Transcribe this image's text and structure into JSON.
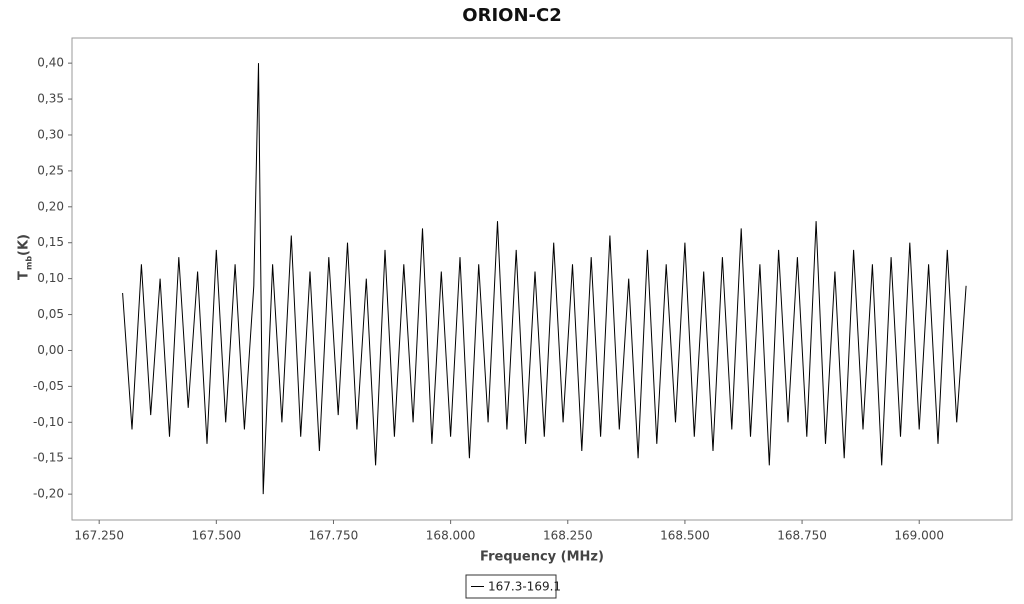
{
  "chart_data": {
    "type": "line",
    "title": "ORION-C2",
    "x_label": "Frequency (MHz)",
    "y_label": {
      "main": "T",
      "subscript": "mb",
      "unit": "(K)"
    },
    "x": [
      167.3,
      167.32,
      167.34,
      167.36,
      167.38,
      167.4,
      167.42,
      167.44,
      167.46,
      167.48,
      167.5,
      167.52,
      167.54,
      167.56,
      167.58,
      167.59,
      167.6,
      167.62,
      167.64,
      167.66,
      167.68,
      167.7,
      167.72,
      167.74,
      167.76,
      167.78,
      167.8,
      167.82,
      167.84,
      167.86,
      167.88,
      167.9,
      167.92,
      167.94,
      167.96,
      167.98,
      168.0,
      168.02,
      168.04,
      168.06,
      168.08,
      168.1,
      168.12,
      168.14,
      168.16,
      168.18,
      168.2,
      168.22,
      168.24,
      168.26,
      168.28,
      168.3,
      168.32,
      168.34,
      168.36,
      168.38,
      168.4,
      168.42,
      168.44,
      168.46,
      168.48,
      168.5,
      168.52,
      168.54,
      168.56,
      168.58,
      168.6,
      168.62,
      168.64,
      168.66,
      168.68,
      168.7,
      168.72,
      168.74,
      168.76,
      168.78,
      168.8,
      168.82,
      168.84,
      168.86,
      168.88,
      168.9,
      168.92,
      168.94,
      168.96,
      168.98,
      169.0,
      169.02,
      169.04,
      169.06,
      169.08,
      169.1
    ],
    "series": [
      {
        "name": "167.3-169.1",
        "color": "#000000",
        "values": [
          0.08,
          -0.11,
          0.12,
          -0.09,
          0.1,
          -0.12,
          0.13,
          -0.08,
          0.11,
          -0.13,
          0.14,
          -0.1,
          0.12,
          -0.11,
          0.09,
          0.4,
          -0.2,
          0.12,
          -0.1,
          0.16,
          -0.12,
          0.11,
          -0.14,
          0.13,
          -0.09,
          0.15,
          -0.11,
          0.1,
          -0.16,
          0.14,
          -0.12,
          0.12,
          -0.1,
          0.17,
          -0.13,
          0.11,
          -0.12,
          0.13,
          -0.15,
          0.12,
          -0.1,
          0.18,
          -0.11,
          0.14,
          -0.13,
          0.11,
          -0.12,
          0.15,
          -0.1,
          0.12,
          -0.14,
          0.13,
          -0.12,
          0.16,
          -0.11,
          0.1,
          -0.15,
          0.14,
          -0.13,
          0.12,
          -0.1,
          0.15,
          -0.12,
          0.11,
          -0.14,
          0.13,
          -0.11,
          0.17,
          -0.12,
          0.12,
          -0.16,
          0.14,
          -0.1,
          0.13,
          -0.12,
          0.18,
          -0.13,
          0.11,
          -0.15,
          0.14,
          -0.11,
          0.12,
          -0.16,
          0.13,
          -0.12,
          0.15,
          -0.11,
          0.12,
          -0.13,
          0.14,
          -0.1,
          0.09
        ]
      }
    ],
    "xlim": [
      167.192,
      169.198
    ],
    "ylim": [
      -0.236,
      0.435
    ],
    "xticks": [
      {
        "value": 167.25,
        "label": "167.250"
      },
      {
        "value": 167.5,
        "label": "167.500"
      },
      {
        "value": 167.75,
        "label": "167.750"
      },
      {
        "value": 168.0,
        "label": "168.000"
      },
      {
        "value": 168.25,
        "label": "168.250"
      },
      {
        "value": 168.5,
        "label": "168.500"
      },
      {
        "value": 168.75,
        "label": "168.750"
      },
      {
        "value": 169.0,
        "label": "169.000"
      }
    ],
    "yticks": [
      {
        "value": -0.2,
        "label": "-0,20"
      },
      {
        "value": -0.15,
        "label": "-0,15"
      },
      {
        "value": -0.1,
        "label": "-0,10"
      },
      {
        "value": -0.05,
        "label": "-0,05"
      },
      {
        "value": 0,
        "label": "0,00"
      },
      {
        "value": 0.05,
        "label": "0,05"
      },
      {
        "value": 0.1,
        "label": "0,10"
      },
      {
        "value": 0.15,
        "label": "0,15"
      },
      {
        "value": 0.2,
        "label": "0,20"
      },
      {
        "value": 0.25,
        "label": "0,25"
      },
      {
        "value": 0.3,
        "label": "0,30"
      },
      {
        "value": 0.35,
        "label": "0,35"
      },
      {
        "value": 0.4,
        "label": "0,40"
      }
    ],
    "grid": false
  }
}
